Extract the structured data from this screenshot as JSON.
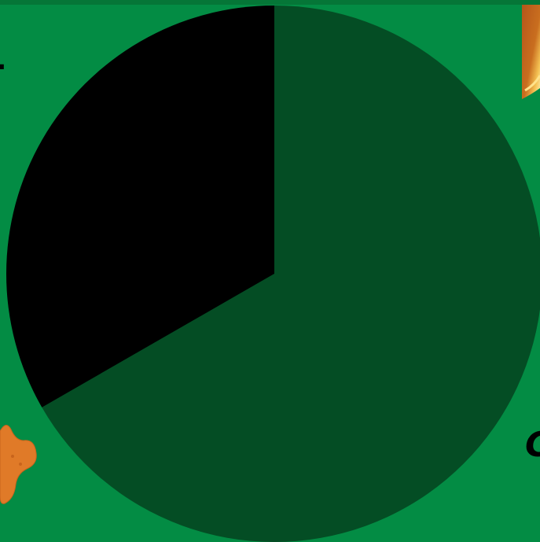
{
  "colors": {
    "background": "#038c44",
    "top_strip": "#057637",
    "slice_large": "#044d24",
    "slice_small": "#000000",
    "coin_gold": "#e8a23a",
    "coin_rust": "#b4561a",
    "biscuit_orange": "#e07a28"
  },
  "decorations": {
    "top_left_fragment": "L",
    "bottom_right_fragment": "C",
    "top_right_item": "gold-coin",
    "bottom_left_item": "orange-biscuit"
  },
  "chart_data": {
    "type": "pie",
    "title": "",
    "start_angle_deg": 0,
    "direction": "clockwise",
    "slices": [
      {
        "label": "",
        "value": 66.7,
        "color": "#044d24"
      },
      {
        "label": "",
        "value": 33.3,
        "color": "#000000"
      }
    ],
    "legend": "none"
  }
}
